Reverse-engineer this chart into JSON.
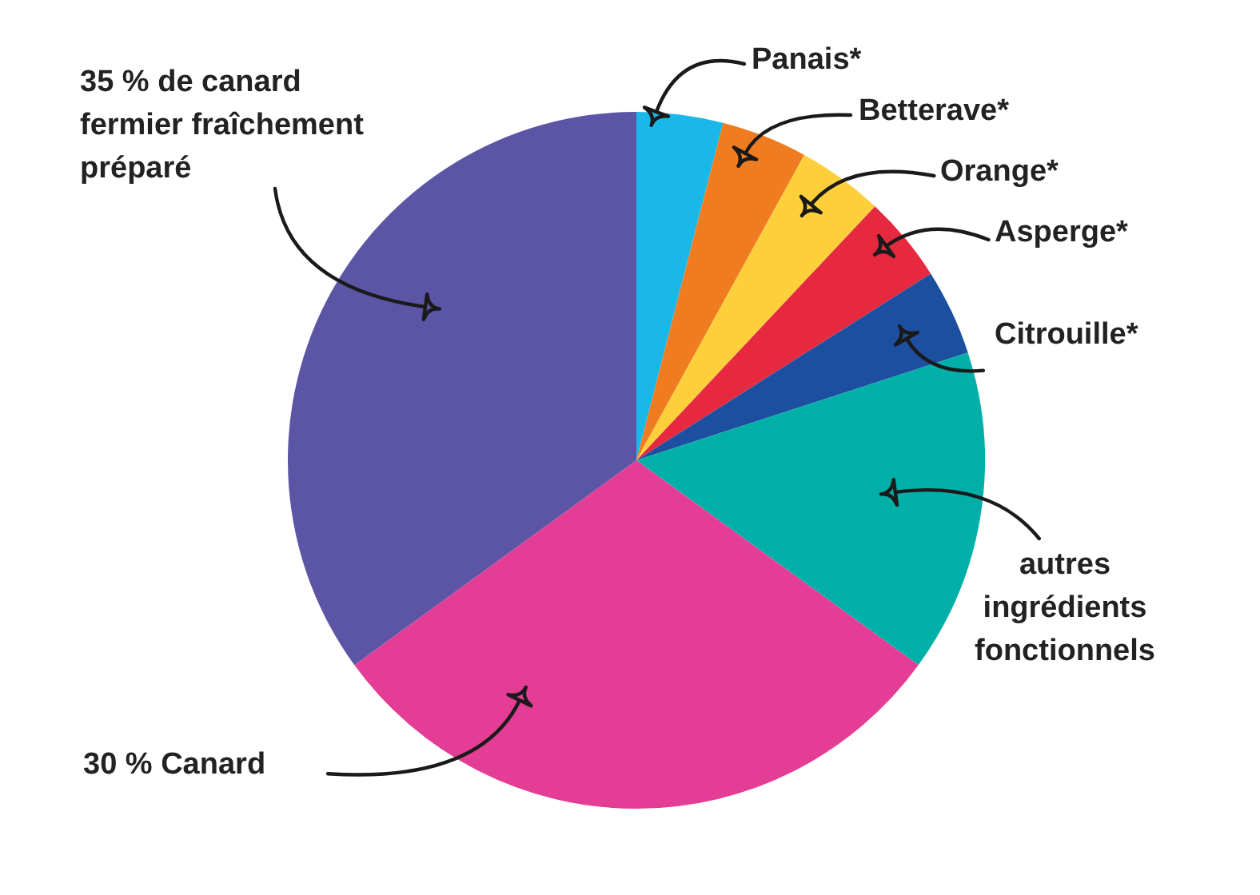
{
  "chart_data": {
    "type": "pie",
    "categories": [
      "Panais*",
      "Betterave*",
      "Orange*",
      "Asperge*",
      "Citrouille*",
      "autres ingrédients fonctionnels",
      "30 % Canard",
      "35 % de canard fermier fraîchement préparé"
    ],
    "values": [
      4,
      4,
      4,
      4,
      4,
      15,
      30,
      35
    ],
    "colors": [
      "#1ab8e8",
      "#f07c22",
      "#fdd03b",
      "#e6293f",
      "#1c4fa0",
      "#00b0a8",
      "#e43d96",
      "#5c55a5"
    ]
  }
}
